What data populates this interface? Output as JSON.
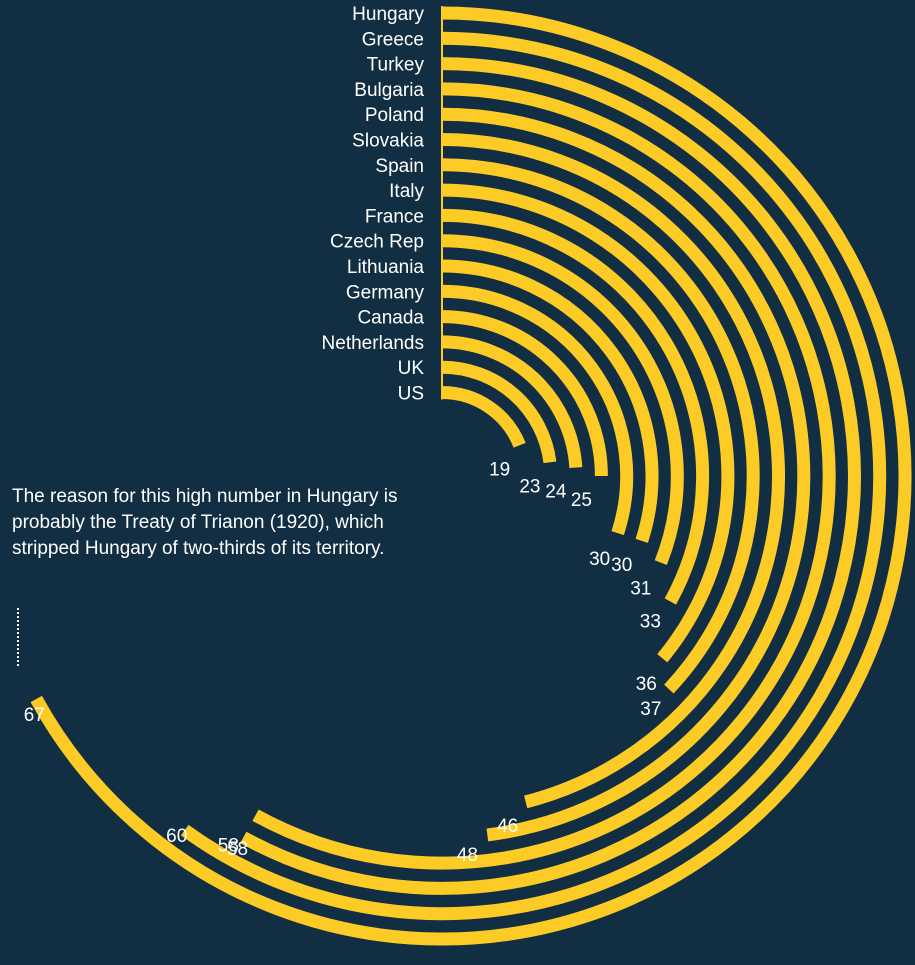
{
  "annotation": "The reason for this high number in Hungary is probably the Treaty of Trianon (1920), which stripped Hungary of two-thirds of its territory.",
  "chart_data": {
    "type": "radial-bar",
    "title": "",
    "categories": [
      "Hungary",
      "Greece",
      "Turkey",
      "Bulgaria",
      "Poland",
      "Slovakia",
      "Spain",
      "Italy",
      "France",
      "Czech Rep",
      "Lithuania",
      "Germany",
      "Canada",
      "Netherlands",
      "UK",
      "US"
    ],
    "values": [
      67,
      60,
      58,
      58,
      48,
      46,
      37,
      36,
      33,
      31,
      30,
      30,
      25,
      24,
      23,
      19
    ],
    "max": 100,
    "colors": {
      "bar": "#fdcb26",
      "background": "#112e43",
      "text": "#ffffff"
    }
  }
}
